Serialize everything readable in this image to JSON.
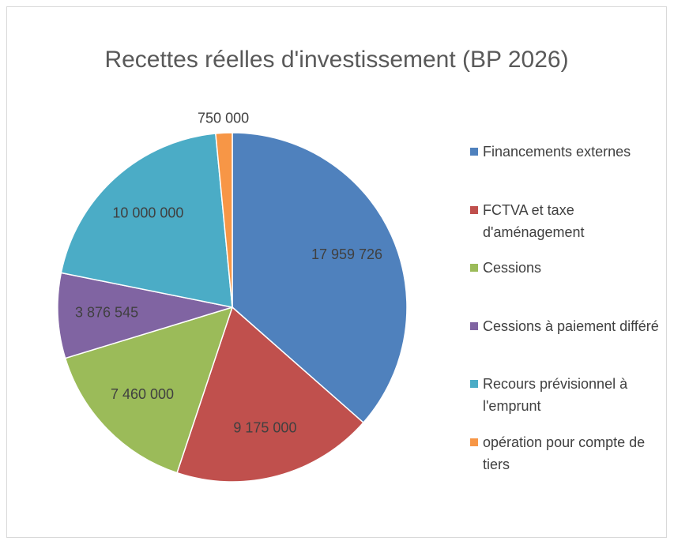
{
  "chart_data": {
    "type": "pie",
    "title": "Recettes réelles d'investissement (BP 2026)",
    "categories": [
      "Financements externes",
      "FCTVA et taxe d'aménagement",
      "Cessions",
      "Cessions à paiement différé",
      "Recours prévisionnel à l'emprunt",
      "opération pour compte de tiers"
    ],
    "values": [
      17959726,
      9175000,
      7460000,
      3876545,
      10000000,
      750000
    ],
    "value_labels": [
      "17 959 726",
      "9 175 000",
      "7 460 000",
      "3 876 545",
      "10 000 000",
      "750 000"
    ],
    "colors": [
      "#4f81bd",
      "#c0504d",
      "#9bbb59",
      "#8064a2",
      "#4bacc6",
      "#f79646"
    ],
    "legend": "right"
  }
}
